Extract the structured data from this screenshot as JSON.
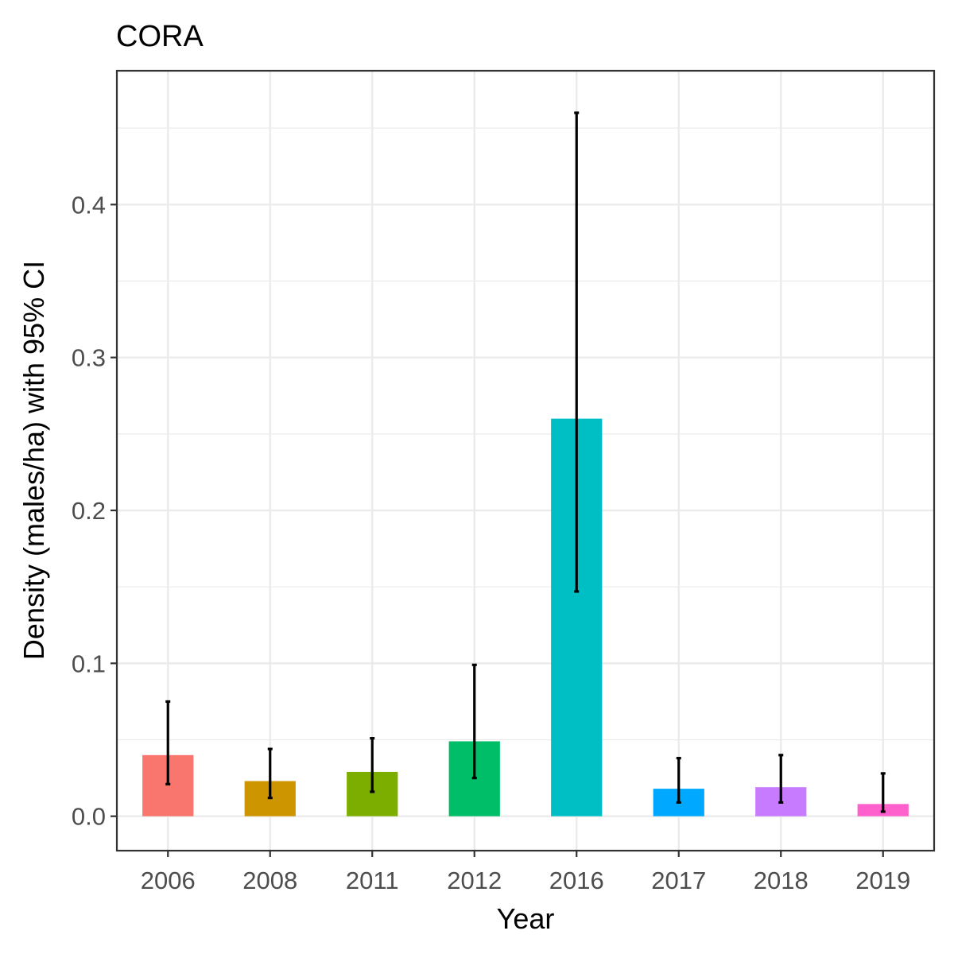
{
  "chart_data": {
    "type": "bar",
    "title": "CORA",
    "xlabel": "Year",
    "ylabel": "Density (males/ha) with 95% CI",
    "categories": [
      "2006",
      "2008",
      "2011",
      "2012",
      "2016",
      "2017",
      "2018",
      "2019"
    ],
    "values": [
      0.04,
      0.023,
      0.029,
      0.049,
      0.26,
      0.018,
      0.019,
      0.008
    ],
    "ci_lower": [
      0.021,
      0.012,
      0.016,
      0.025,
      0.147,
      0.009,
      0.009,
      0.003
    ],
    "ci_upper": [
      0.075,
      0.044,
      0.051,
      0.099,
      0.46,
      0.038,
      0.04,
      0.028
    ],
    "colors": [
      "#F8766D",
      "#CD9600",
      "#7CAE00",
      "#00BE67",
      "#00BFC4",
      "#00A9FF",
      "#C77CFF",
      "#FF61CC"
    ],
    "ylim": [
      -0.0225,
      0.4875
    ],
    "yticks": [
      0.0,
      0.1,
      0.2,
      0.3,
      0.4
    ],
    "ytick_labels": [
      "0.0",
      "0.1",
      "0.2",
      "0.3",
      "0.4"
    ],
    "grid": true,
    "legend": "none"
  }
}
